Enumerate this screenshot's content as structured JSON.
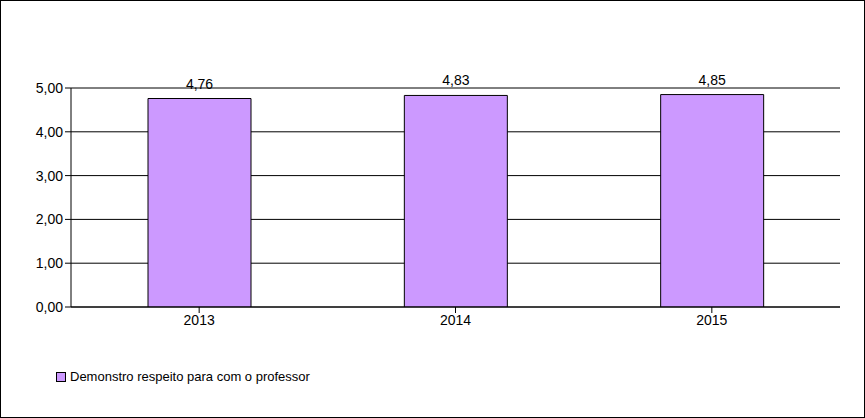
{
  "chart_data": {
    "type": "bar",
    "categories": [
      "2013",
      "2014",
      "2015"
    ],
    "series": [
      {
        "name": "Demonstro respeito para com o professor",
        "color": "#cc99ff",
        "values": [
          4.76,
          4.83,
          4.85
        ],
        "value_labels": [
          "4,76",
          "4,83",
          "4,85"
        ]
      }
    ],
    "ylim": [
      0,
      5
    ],
    "yticks": [
      {
        "value": 0,
        "label": "0,00"
      },
      {
        "value": 1,
        "label": "1,00"
      },
      {
        "value": 2,
        "label": "2,00"
      },
      {
        "value": 3,
        "label": "3,00"
      },
      {
        "value": 4,
        "label": "4,00"
      },
      {
        "value": 5,
        "label": "5,00"
      }
    ],
    "grid": true,
    "data_labels": true,
    "legend": "bottom-left"
  }
}
